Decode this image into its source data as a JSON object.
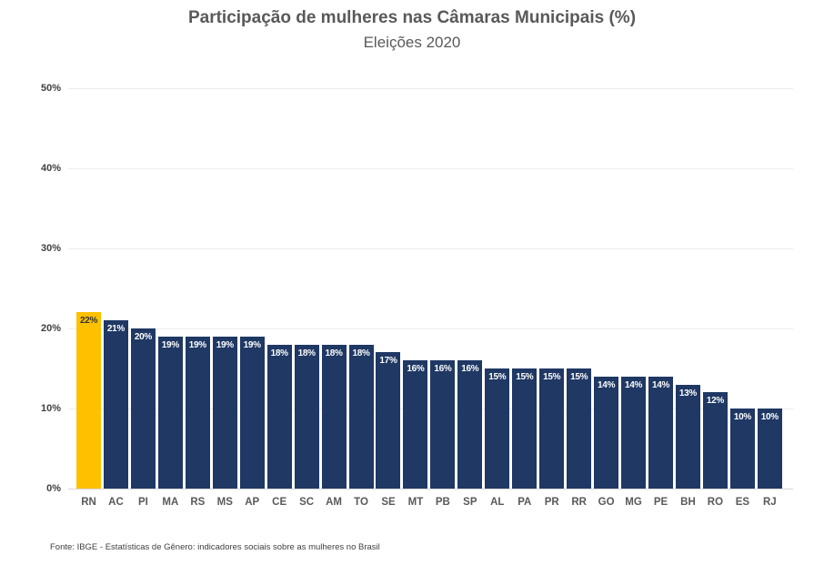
{
  "page": {
    "background": "#ffffff"
  },
  "header": {
    "title": "Participação de mulheres nas Câmaras Municipais (%)",
    "subtitle": "Eleições 2020"
  },
  "footer": {
    "source": "Fonte: IBGE - Estatísticas de Gênero: indicadores sociais sobre as mulheres no Brasil"
  },
  "chart_data": {
    "type": "bar",
    "title": "Participação de mulheres nas Câmaras Municipais (%)",
    "subtitle": "Eleições 2020",
    "categories": [
      "RN",
      "AC",
      "PI",
      "MA",
      "RS",
      "MS",
      "AP",
      "CE",
      "SC",
      "AM",
      "TO",
      "SE",
      "MT",
      "PB",
      "SP",
      "AL",
      "PA",
      "PR",
      "RR",
      "GO",
      "MG",
      "PE",
      "BH",
      "RO",
      "ES",
      "RJ"
    ],
    "values": [
      22,
      21,
      20,
      19,
      19,
      19,
      19,
      18,
      18,
      18,
      18,
      17,
      16,
      16,
      16,
      15,
      15,
      15,
      15,
      14,
      14,
      14,
      13,
      12,
      10,
      10
    ],
    "value_labels": [
      "22%",
      "21%",
      "20%",
      "19%",
      "19%",
      "19%",
      "19%",
      "18%",
      "18%",
      "18%",
      "18%",
      "17%",
      "16%",
      "16%",
      "16%",
      "15%",
      "15%",
      "15%",
      "15%",
      "14%",
      "14%",
      "14%",
      "13%",
      "12%",
      "10%",
      "10%"
    ],
    "y_ticks": [
      {
        "value": 0,
        "label": "0%"
      },
      {
        "value": 10,
        "label": "10%"
      },
      {
        "value": 20,
        "label": "20%"
      },
      {
        "value": 30,
        "label": "30%"
      },
      {
        "value": 40,
        "label": "40%"
      },
      {
        "value": 50,
        "label": "50%"
      }
    ],
    "ylim": [
      0,
      50
    ],
    "grid": true,
    "legend_position": "none",
    "xlabel": "",
    "ylabel": "",
    "colors": {
      "bar_default": "#1F3864",
      "bar_highlight": "#FFC000",
      "value_label_default": "#FFFFFF",
      "value_label_highlight": "#333333",
      "axis_text": "#404040",
      "category_text": "#595959",
      "title_text": "#595959",
      "gridline": "#EDEDED"
    },
    "highlight_index": 0,
    "source": "Fonte: IBGE - Estatísticas de Gênero: indicadores sociais sobre as mulheres no Brasil"
  }
}
